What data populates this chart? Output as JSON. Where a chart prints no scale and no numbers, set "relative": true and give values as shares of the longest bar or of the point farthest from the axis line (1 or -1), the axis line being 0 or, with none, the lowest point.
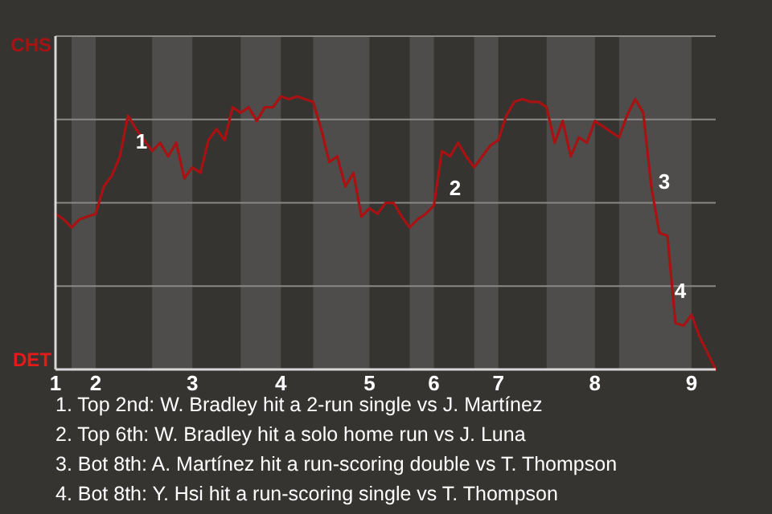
{
  "chart_data": {
    "type": "line",
    "relative": true,
    "categories": [
      "1",
      null,
      null,
      null,
      null,
      "2",
      null,
      null,
      null,
      null,
      null,
      null,
      null,
      null,
      null,
      null,
      null,
      "3",
      null,
      null,
      null,
      null,
      null,
      null,
      null,
      null,
      null,
      null,
      "4",
      null,
      null,
      null,
      null,
      null,
      null,
      null,
      null,
      null,
      null,
      "5",
      null,
      null,
      null,
      null,
      null,
      null,
      null,
      "6",
      null,
      null,
      null,
      null,
      null,
      null,
      null,
      "7",
      null,
      null,
      null,
      null,
      null,
      null,
      null,
      null,
      null,
      null,
      null,
      "8",
      null,
      null,
      null,
      null,
      null,
      null,
      null,
      null,
      null,
      null,
      null,
      "9",
      null,
      null,
      null
    ],
    "series": [
      {
        "color": "#a81212",
        "values": [
          0.57,
          0.55,
          0.52,
          0.55,
          0.56,
          0.57,
          0.67,
          0.71,
          0.78,
          0.93,
          0.88,
          0.84,
          0.8,
          0.83,
          0.78,
          0.83,
          0.7,
          0.74,
          0.72,
          0.84,
          0.88,
          0.84,
          0.96,
          0.94,
          0.96,
          0.91,
          0.96,
          0.96,
          1,
          0.99,
          1,
          0.99,
          0.98,
          0.88,
          0.76,
          0.78,
          0.67,
          0.72,
          0.56,
          0.59,
          0.57,
          0.61,
          0.61,
          0.56,
          0.52,
          0.55,
          0.57,
          0.6,
          0.8,
          0.78,
          0.83,
          0.78,
          0.74,
          0.78,
          0.82,
          0.84,
          0.93,
          0.98,
          0.99,
          0.98,
          0.98,
          0.96,
          0.83,
          0.91,
          0.78,
          0.85,
          0.83,
          0.91,
          0.89,
          0.87,
          0.85,
          0.93,
          0.99,
          0.94,
          0.67,
          0.5,
          0.49,
          0.17,
          0.16,
          0.2,
          0.12,
          0.06,
          0
        ]
      }
    ],
    "grid": "y",
    "annotations": [
      "CHS",
      "DET",
      "1",
      "2",
      "3",
      "4",
      "1. Top 2nd: W. Bradley hit a 2-run single vs J. Martínez",
      "2. Top 6th: W. Bradley hit a solo home run vs J. Luna",
      "3. Bot 8th: A. Martínez hit a run-scoring double vs T. Thompson",
      "4. Bot 8th: Y. Hsi hit a run-scoring single vs T. Thompson"
    ]
  }
}
